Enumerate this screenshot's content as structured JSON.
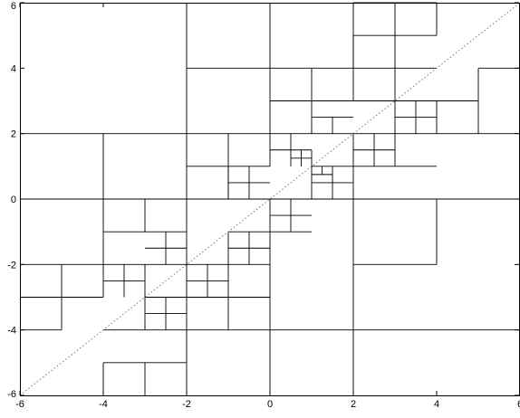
{
  "chart_data": {
    "type": "quadtree-partition",
    "title": "",
    "xlabel": "",
    "ylabel": "",
    "xlim": [
      -6,
      6
    ],
    "ylim": [
      -6,
      6
    ],
    "x_ticks": [
      -6,
      -4,
      -2,
      0,
      2,
      4,
      6
    ],
    "y_ticks": [
      -6,
      -4,
      -2,
      0,
      2,
      4,
      6
    ],
    "x_tick_labels": [
      "-6",
      "-4",
      "-2",
      "0",
      "2",
      "4",
      "6"
    ],
    "y_tick_labels": [
      "-6",
      "-4",
      "-2",
      "0",
      "2",
      "4",
      "6"
    ],
    "grid": false,
    "line_color": "#000000",
    "diagonal": {
      "from": [
        -6,
        -6
      ],
      "to": [
        6,
        6
      ],
      "style": "dotted",
      "color": "#777777"
    },
    "partition_segments": [
      [
        [
          -4,
          2
        ],
        [
          -4,
          -2
        ]
      ],
      [
        [
          -6,
          2
        ],
        [
          -4,
          2
        ]
      ],
      [
        [
          -4,
          2
        ],
        [
          -2,
          2
        ]
      ],
      [
        [
          -6,
          0
        ],
        [
          6,
          0
        ]
      ],
      [
        [
          -2,
          6
        ],
        [
          -2,
          -2
        ]
      ],
      [
        [
          0,
          6
        ],
        [
          0,
          2
        ]
      ],
      [
        [
          2,
          6
        ],
        [
          2,
          4
        ]
      ],
      [
        [
          -2,
          4
        ],
        [
          2,
          4
        ]
      ],
      [
        [
          2,
          6
        ],
        [
          4,
          6
        ]
      ],
      [
        [
          2,
          5
        ],
        [
          4,
          5
        ]
      ],
      [
        [
          3,
          6
        ],
        [
          3,
          5
        ]
      ],
      [
        [
          4,
          6
        ],
        [
          4,
          5
        ]
      ],
      [
        [
          2,
          4
        ],
        [
          4,
          4
        ]
      ],
      [
        [
          2,
          5
        ],
        [
          2,
          4
        ]
      ],
      [
        [
          3,
          5
        ],
        [
          3,
          4
        ]
      ],
      [
        [
          2,
          4
        ],
        [
          2,
          3
        ]
      ],
      [
        [
          2,
          3
        ],
        [
          3,
          3
        ]
      ],
      [
        [
          3,
          4
        ],
        [
          3,
          3
        ]
      ],
      [
        [
          0,
          3
        ],
        [
          2,
          3
        ]
      ],
      [
        [
          1,
          4
        ],
        [
          1,
          2
        ]
      ],
      [
        [
          1,
          2.5
        ],
        [
          2,
          2.5
        ]
      ],
      [
        [
          1.5,
          2.5
        ],
        [
          1.5,
          2
        ]
      ],
      [
        [
          0,
          2
        ],
        [
          2,
          2
        ]
      ],
      [
        [
          -2,
          2
        ],
        [
          0,
          2
        ]
      ],
      [
        [
          -1,
          2
        ],
        [
          -1,
          0
        ]
      ],
      [
        [
          -2,
          1
        ],
        [
          0,
          1
        ]
      ],
      [
        [
          -1,
          1
        ],
        [
          -1,
          0
        ]
      ],
      [
        [
          -1,
          0.5
        ],
        [
          0,
          0.5
        ]
      ],
      [
        [
          -0.5,
          1
        ],
        [
          -0.5,
          0
        ]
      ],
      [
        [
          0,
          2
        ],
        [
          0,
          1
        ]
      ],
      [
        [
          0,
          1.5
        ],
        [
          1,
          1.5
        ]
      ],
      [
        [
          0.5,
          2
        ],
        [
          0.5,
          1
        ]
      ],
      [
        [
          0.5,
          1.25
        ],
        [
          1,
          1.25
        ]
      ],
      [
        [
          0.75,
          1.5
        ],
        [
          0.75,
          1
        ]
      ],
      [
        [
          1,
          1.5
        ],
        [
          1,
          1
        ]
      ],
      [
        [
          -4,
          -1
        ],
        [
          -2,
          -1
        ]
      ],
      [
        [
          -3,
          0
        ],
        [
          -3,
          -1
        ]
      ],
      [
        [
          -3,
          -1.5
        ],
        [
          -2,
          -1.5
        ]
      ],
      [
        [
          -2.5,
          -1
        ],
        [
          -2.5,
          -2
        ]
      ],
      [
        [
          -4,
          -2
        ],
        [
          -2,
          -2
        ]
      ],
      [
        [
          -6,
          -2
        ],
        [
          -4,
          -2
        ]
      ],
      [
        [
          -6,
          -3
        ],
        [
          -4,
          -3
        ]
      ],
      [
        [
          -5,
          -2
        ],
        [
          -5,
          -4
        ]
      ],
      [
        [
          -6,
          -4
        ],
        [
          -5,
          -4
        ]
      ],
      [
        [
          -4,
          -2
        ],
        [
          -4,
          -3
        ]
      ],
      [
        [
          -3,
          -2
        ],
        [
          -3,
          -3
        ]
      ],
      [
        [
          -4,
          -2.5
        ],
        [
          -3,
          -2.5
        ]
      ],
      [
        [
          -3.5,
          -2
        ],
        [
          -3.5,
          -3
        ]
      ],
      [
        [
          -2,
          -2
        ],
        [
          0,
          -2
        ]
      ],
      [
        [
          0,
          0
        ],
        [
          0,
          -4
        ]
      ],
      [
        [
          -1,
          -1
        ],
        [
          0,
          -1
        ]
      ],
      [
        [
          -1,
          -2
        ],
        [
          -1,
          -1
        ]
      ],
      [
        [
          -0.5,
          -1
        ],
        [
          -0.5,
          -2
        ]
      ],
      [
        [
          -1,
          -1.5
        ],
        [
          0,
          -1.5
        ]
      ],
      [
        [
          -2,
          -2
        ],
        [
          -2,
          -4
        ]
      ],
      [
        [
          -1,
          -2
        ],
        [
          -1,
          -4
        ]
      ],
      [
        [
          -2,
          -2.5
        ],
        [
          -1,
          -2.5
        ]
      ],
      [
        [
          -1.5,
          -2
        ],
        [
          -1.5,
          -3
        ]
      ],
      [
        [
          -2,
          -3
        ],
        [
          0,
          -3
        ]
      ],
      [
        [
          -3,
          -3
        ],
        [
          -1,
          -3
        ]
      ],
      [
        [
          -3,
          -3
        ],
        [
          -3,
          -4
        ]
      ],
      [
        [
          -2.5,
          -3
        ],
        [
          -2.5,
          -4
        ]
      ],
      [
        [
          -3,
          -3.5
        ],
        [
          -2,
          -3.5
        ]
      ],
      [
        [
          -4,
          -4
        ],
        [
          0,
          -4
        ]
      ],
      [
        [
          -4,
          -5
        ],
        [
          -2,
          -5
        ]
      ],
      [
        [
          -4,
          -5
        ],
        [
          -4,
          -6
        ]
      ],
      [
        [
          -3,
          -5
        ],
        [
          -3,
          -6
        ]
      ],
      [
        [
          -2,
          -4
        ],
        [
          -2,
          -6
        ]
      ],
      [
        [
          0,
          -4
        ],
        [
          0,
          -6
        ]
      ],
      [
        [
          0,
          -4
        ],
        [
          2,
          -4
        ]
      ],
      [
        [
          2,
          0
        ],
        [
          2,
          -6
        ]
      ],
      [
        [
          4,
          0
        ],
        [
          4,
          -2
        ]
      ],
      [
        [
          6,
          0
        ],
        [
          6,
          -4
        ]
      ],
      [
        [
          2,
          2
        ],
        [
          4,
          2
        ]
      ],
      [
        [
          4,
          2
        ],
        [
          6,
          2
        ]
      ],
      [
        [
          4,
          3
        ],
        [
          4,
          2
        ]
      ],
      [
        [
          5,
          4
        ],
        [
          5,
          2
        ]
      ],
      [
        [
          5,
          4
        ],
        [
          6,
          4
        ]
      ],
      [
        [
          4,
          3
        ],
        [
          5,
          3
        ]
      ],
      [
        [
          3,
          3
        ],
        [
          4,
          3
        ]
      ],
      [
        [
          3,
          2.5
        ],
        [
          4,
          2.5
        ]
      ],
      [
        [
          3.5,
          3
        ],
        [
          3.5,
          2
        ]
      ],
      [
        [
          3,
          3
        ],
        [
          3,
          1
        ]
      ],
      [
        [
          2,
          1
        ],
        [
          4,
          1
        ]
      ],
      [
        [
          2.5,
          2
        ],
        [
          2.5,
          1
        ]
      ],
      [
        [
          2,
          1.5
        ],
        [
          3,
          1.5
        ]
      ],
      [
        [
          2,
          2
        ],
        [
          2,
          0
        ]
      ],
      [
        [
          1,
          1
        ],
        [
          2,
          1
        ]
      ],
      [
        [
          1,
          1
        ],
        [
          1,
          0
        ]
      ],
      [
        [
          1,
          0.5
        ],
        [
          2,
          0.5
        ]
      ],
      [
        [
          1.5,
          1
        ],
        [
          1.5,
          0
        ]
      ],
      [
        [
          1.25,
          1
        ],
        [
          1.25,
          0.75
        ]
      ],
      [
        [
          1,
          0.75
        ],
        [
          1.5,
          0.75
        ]
      ],
      [
        [
          0,
          0
        ],
        [
          1,
          0
        ]
      ],
      [
        [
          0.5,
          0
        ],
        [
          0.5,
          -1
        ]
      ],
      [
        [
          0,
          -0.5
        ],
        [
          1,
          -0.5
        ]
      ],
      [
        [
          0,
          -1
        ],
        [
          1,
          -1
        ]
      ],
      [
        [
          2,
          -2
        ],
        [
          4,
          -2
        ]
      ],
      [
        [
          2,
          -4
        ],
        [
          6,
          -4
        ]
      ]
    ]
  }
}
